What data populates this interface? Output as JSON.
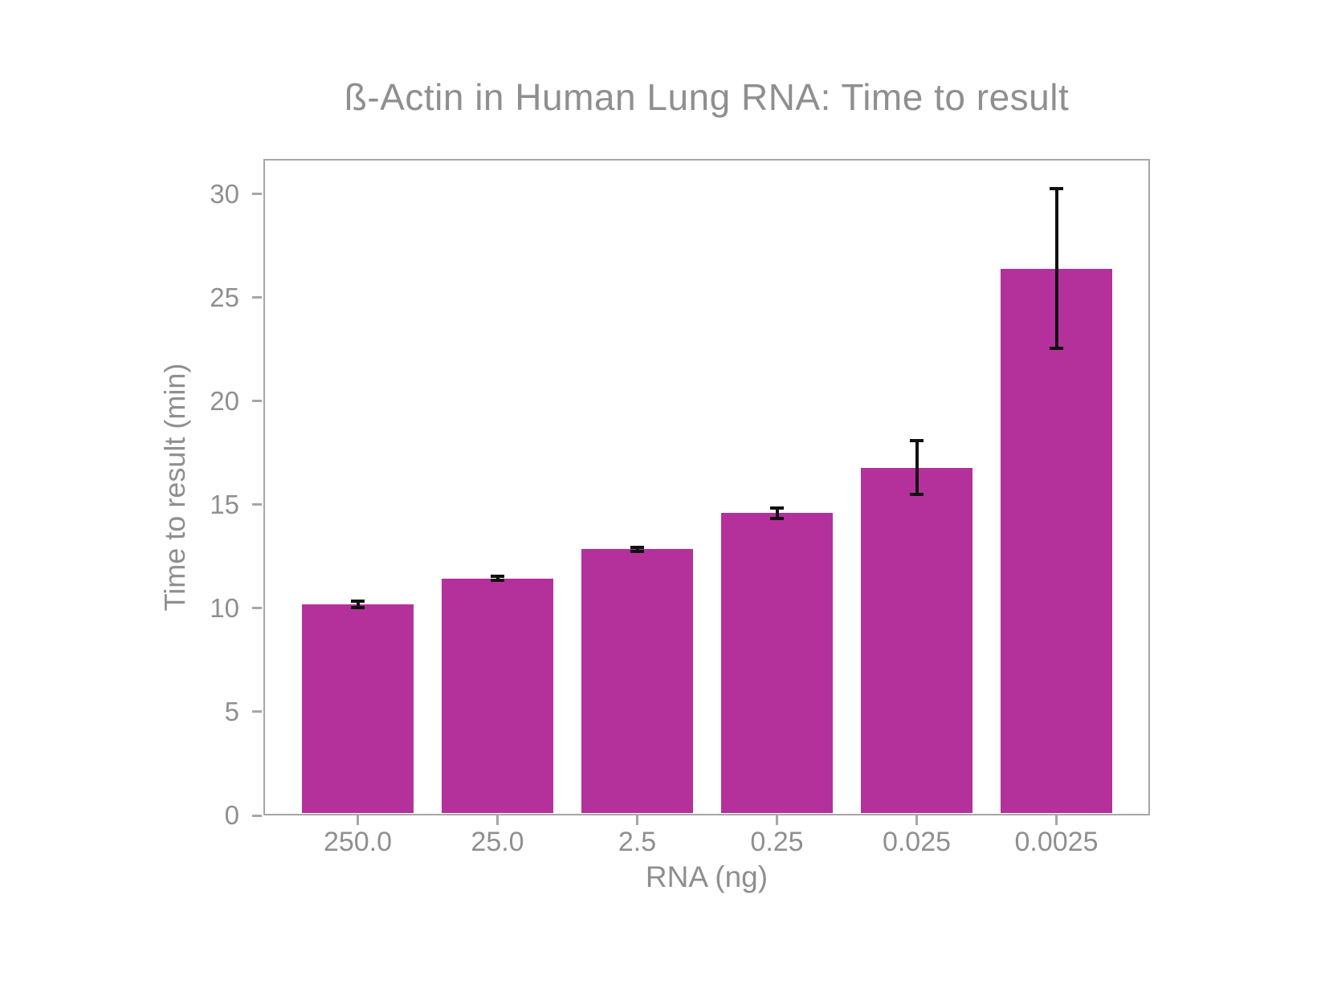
{
  "chart_data": {
    "type": "bar",
    "title": "ß-Actin in Human Lung RNA: Time to result",
    "xlabel": "RNA (ng)",
    "ylabel": "Time to result (min)",
    "categories": [
      "250.0",
      "25.0",
      "2.5",
      "0.25",
      "0.025",
      "0.0025"
    ],
    "values": [
      10.1,
      11.35,
      12.75,
      14.5,
      16.7,
      26.3
    ],
    "errors": [
      0.15,
      0.1,
      0.1,
      0.25,
      1.3,
      3.85
    ],
    "yticks": [
      0,
      5,
      10,
      15,
      20,
      25,
      30
    ],
    "ylim": [
      0,
      31.7
    ],
    "grid": false,
    "legend": "none",
    "colors": {
      "bar": "#b4319b",
      "error_bar": "#111111",
      "axis": "#a6a6a6",
      "text": "#8f8f8f",
      "background": "#ffffff"
    }
  }
}
